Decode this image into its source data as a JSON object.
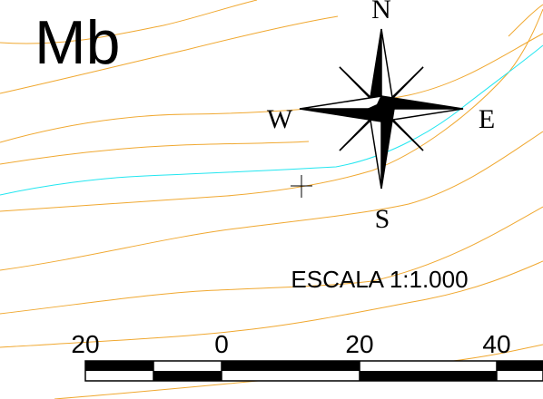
{
  "map": {
    "zone_label": "Mb",
    "scale_text": "ESCALA 1:1.000",
    "compass": {
      "north": "N",
      "south": "S",
      "east": "E",
      "west": "W"
    },
    "scale_bar": {
      "tick_labels": [
        "20",
        "0",
        "20",
        "40"
      ]
    },
    "colors": {
      "contour": "#f0a830",
      "stream": "#22e6f0",
      "ink": "#000000",
      "background": "#ffffff"
    }
  }
}
